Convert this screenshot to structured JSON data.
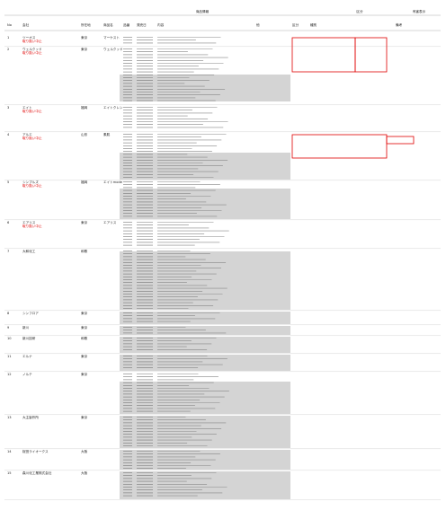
{
  "header": {
    "group_product": "商品情報",
    "group_class": "区分",
    "group_label": "有害表示",
    "columns": [
      "No",
      "会社",
      "所在地",
      "商品名",
      "品番",
      "発売日",
      "内容",
      "他",
      "区分",
      "種別",
      "備考"
    ]
  },
  "sections": [
    {
      "no": "1",
      "company": "ツーオス",
      "location": "東京",
      "product": "マーケスト",
      "note": "取り扱い中止"
    },
    {
      "no": "2",
      "company": "ウェルクッド",
      "location": "東京",
      "product": "ウェルクッド",
      "note": "取り扱い中止"
    },
    {
      "no": "3",
      "company": "エイト",
      "location": "福岡",
      "product": "エイトクレン",
      "note": "取り扱い中止"
    },
    {
      "no": "4",
      "company": "アルエ",
      "location": "山形",
      "product": "素肌",
      "note": "取り扱い中止"
    },
    {
      "no": "5",
      "company": "シンプルズ",
      "location": "福岡",
      "product": "エイトmode",
      "note": "取り扱い中止"
    },
    {
      "no": "6",
      "company": "エアリス",
      "location": "東京",
      "product": "エアリス",
      "note": "取り扱い中止"
    },
    {
      "no": "7",
      "company": "大和化工",
      "location": "和歌",
      "product": "",
      "note": ""
    },
    {
      "no": "8",
      "company": "シンフロア",
      "location": "東京",
      "product": "",
      "note": ""
    },
    {
      "no": "9",
      "company": "新川",
      "location": "東京",
      "product": "",
      "note": ""
    },
    {
      "no": "10",
      "company": "新川技研",
      "location": "和歌",
      "product": "",
      "note": ""
    },
    {
      "no": "11",
      "company": "エルナ",
      "location": "東京",
      "product": "",
      "note": ""
    },
    {
      "no": "12",
      "company": "ノルテ",
      "location": "東京",
      "product": "",
      "note": ""
    },
    {
      "no": "13",
      "company": "大主製作所",
      "location": "東京",
      "product": "",
      "note": ""
    },
    {
      "no": "14",
      "company": "桜田ライオークス",
      "location": "大阪",
      "product": "",
      "note": ""
    },
    {
      "no": "15",
      "company": "森川化工業株式会社",
      "location": "大阪",
      "product": "",
      "note": ""
    }
  ]
}
